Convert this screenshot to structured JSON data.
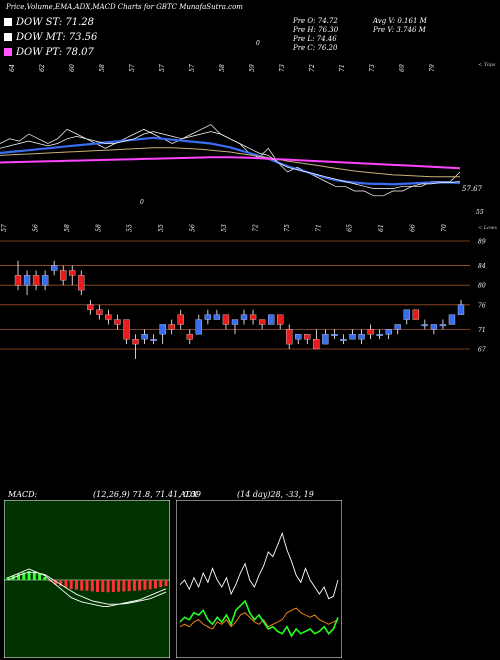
{
  "title": "Price,Volume,EMA,ADX,MACD Charts for GBTC MunafaSutra.com",
  "legend": [
    {
      "label": "DOW ST: 71.28",
      "color": "#ffffff"
    },
    {
      "label": "DOW MT: 73.56",
      "color": "#ffffff"
    },
    {
      "label": "DOW PT: 78.07",
      "color": "#ff55ff"
    }
  ],
  "info": {
    "pre_o": "Pre  O: 74.72",
    "pre_h": "Pre  H: 76.30",
    "pre_l": "Pre  L: 74.46",
    "pre_c": "Pre  C: 76.20",
    "avg_v": "Avg V: 0.161 M",
    "pre_v": "Pre  V: 3.746  M"
  },
  "colors": {
    "up": "#3a6cf0",
    "down": "#e81c1c",
    "ma_pink": "#ff44ff",
    "macd_bg": "#003300",
    "grid": "#a0522d"
  },
  "chart_data": [
    {
      "type": "line",
      "name": "ema-panel",
      "top_labels": [
        "64",
        "62",
        "60",
        "58",
        "57",
        "57",
        "57",
        "58",
        "59",
        "73",
        "72",
        "71",
        "73",
        "69",
        "79"
      ],
      "top_right_label": "< Tops",
      "bottom_labels": [
        "57",
        "56",
        "58",
        "58",
        "55",
        "55",
        "56",
        "53",
        "72",
        "75",
        "71",
        "65",
        "61",
        "66",
        "70"
      ],
      "bottom_right_label": "< Lows",
      "stray_labels": [
        "0",
        "0"
      ],
      "right_labels": [
        "57.67",
        "55"
      ],
      "series": [
        {
          "values": [
            66,
            67,
            66.5,
            68,
            67,
            66,
            67,
            69,
            68,
            67,
            66,
            65,
            66,
            67,
            68,
            69,
            68,
            67,
            66,
            67,
            68,
            69,
            70,
            68,
            67,
            66,
            64,
            63,
            65,
            62,
            60,
            61,
            60,
            59,
            58,
            57,
            57,
            56,
            56,
            55,
            55,
            56,
            56,
            57,
            57,
            58,
            58,
            58,
            60
          ]
        },
        {
          "values": [
            64,
            64.2,
            64.4,
            64.6,
            64.8,
            65,
            65.2,
            65.4,
            65.6,
            65.8,
            66,
            66.2,
            66.4,
            66.6,
            66.8,
            67,
            67.2,
            67,
            66.8,
            66.6,
            66.4,
            66.2,
            66,
            65.6,
            65.2,
            64.6,
            64,
            63.4,
            62.8,
            62,
            61.2,
            60.6,
            60,
            59.4,
            58.8,
            58.3,
            58,
            57.8,
            57.6,
            57.5,
            57.5,
            57.4,
            57.5,
            57.6,
            57.7,
            57.8,
            57.8,
            57.8,
            57.7
          ]
        },
        {
          "values": [
            63.5,
            63.6,
            63.7,
            63.8,
            63.9,
            64,
            64.1,
            64.2,
            64.3,
            64.4,
            64.5,
            64.6,
            64.7,
            64.8,
            64.9,
            65,
            65.1,
            65.1,
            65.1,
            65,
            64.9,
            64.8,
            64.6,
            64.4,
            64.2,
            63.9,
            63.6,
            63.3,
            63,
            62.7,
            62.3,
            62,
            61.7,
            61.4,
            61.1,
            60.8,
            60.5,
            60.2,
            60,
            59.8,
            59.6,
            59.4,
            59.3,
            59.2,
            59.1,
            59,
            59,
            59,
            59
          ]
        },
        {
          "values": [
            62,
            62.05,
            62.1,
            62.15,
            62.2,
            62.25,
            62.3,
            62.35,
            62.4,
            62.45,
            62.5,
            62.55,
            62.6,
            62.65,
            62.7,
            62.75,
            62.8,
            62.85,
            62.9,
            62.95,
            63,
            63.05,
            63.1,
            63.1,
            63.1,
            63.05,
            63,
            62.9,
            62.8,
            62.7,
            62.6,
            62.5,
            62.4,
            62.3,
            62.2,
            62.1,
            62,
            61.9,
            61.8,
            61.7,
            61.6,
            61.5,
            61.4,
            61.3,
            61.2,
            61.1,
            61,
            60.9,
            60.8
          ]
        },
        {
          "values": [
            65,
            65.5,
            66,
            66.5,
            66,
            65.5,
            66,
            67,
            67.5,
            67,
            66.5,
            66,
            66,
            66.5,
            67,
            68,
            68.5,
            68,
            67.5,
            67,
            67.5,
            68,
            68.5,
            68,
            67,
            66,
            65,
            64,
            63.5,
            62,
            61,
            60.5,
            60,
            59.5,
            59,
            58.5,
            58,
            57.5,
            57,
            56.5,
            56.5,
            56.5,
            57,
            57,
            57.5,
            57.5,
            57.8,
            57.8,
            58
          ]
        }
      ]
    },
    {
      "type": "candlestick",
      "name": "price-panel",
      "axis_labels": [
        "89",
        "84",
        "80",
        "76",
        "71",
        "67"
      ],
      "axis_values": [
        89,
        84,
        80,
        76,
        71,
        67
      ],
      "candles": [
        {
          "o": 82,
          "h": 85,
          "l": 79,
          "c": 80
        },
        {
          "o": 80,
          "h": 83,
          "l": 78,
          "c": 82
        },
        {
          "o": 82,
          "h": 83,
          "l": 79,
          "c": 80
        },
        {
          "o": 80,
          "h": 83,
          "l": 79,
          "c": 82
        },
        {
          "o": 83,
          "h": 85,
          "l": 82,
          "c": 84
        },
        {
          "o": 83,
          "h": 84,
          "l": 80,
          "c": 81
        },
        {
          "o": 83,
          "h": 84,
          "l": 80,
          "c": 82
        },
        {
          "o": 82,
          "h": 83,
          "l": 78,
          "c": 79
        },
        {
          "o": 76,
          "h": 77,
          "l": 74,
          "c": 75
        },
        {
          "o": 75,
          "h": 76,
          "l": 73,
          "c": 74
        },
        {
          "o": 74,
          "h": 75,
          "l": 72,
          "c": 73
        },
        {
          "o": 73,
          "h": 74,
          "l": 71,
          "c": 72
        },
        {
          "o": 73,
          "h": 73,
          "l": 68,
          "c": 69
        },
        {
          "o": 69,
          "h": 70,
          "l": 65,
          "c": 68
        },
        {
          "o": 69,
          "h": 71,
          "l": 68,
          "c": 70
        },
        {
          "o": 69,
          "h": 70,
          "l": 68,
          "c": 69
        },
        {
          "o": 70,
          "h": 72,
          "l": 68,
          "c": 72
        },
        {
          "o": 72,
          "h": 73,
          "l": 70,
          "c": 71
        },
        {
          "o": 74,
          "h": 75,
          "l": 71,
          "c": 72
        },
        {
          "o": 70,
          "h": 71,
          "l": 68,
          "c": 69
        },
        {
          "o": 70,
          "h": 74,
          "l": 70,
          "c": 73
        },
        {
          "o": 73,
          "h": 75,
          "l": 72,
          "c": 74
        },
        {
          "o": 73,
          "h": 75,
          "l": 73,
          "c": 74
        },
        {
          "o": 74,
          "h": 74,
          "l": 71,
          "c": 72
        },
        {
          "o": 72,
          "h": 73,
          "l": 70,
          "c": 73
        },
        {
          "o": 73,
          "h": 75,
          "l": 72,
          "c": 74
        },
        {
          "o": 74,
          "h": 75,
          "l": 72,
          "c": 73
        },
        {
          "o": 73,
          "h": 73,
          "l": 71,
          "c": 72
        },
        {
          "o": 72,
          "h": 74,
          "l": 72,
          "c": 74
        },
        {
          "o": 74,
          "h": 74,
          "l": 71,
          "c": 72
        },
        {
          "o": 71,
          "h": 72,
          "l": 67,
          "c": 68
        },
        {
          "o": 69,
          "h": 70,
          "l": 68,
          "c": 70
        },
        {
          "o": 70,
          "h": 70,
          "l": 68,
          "c": 69
        },
        {
          "o": 69,
          "h": 71,
          "l": 67,
          "c": 67
        },
        {
          "o": 68,
          "h": 71,
          "l": 68,
          "c": 70
        },
        {
          "o": 70,
          "h": 71,
          "l": 69,
          "c": 70
        },
        {
          "o": 69,
          "h": 70,
          "l": 68,
          "c": 69
        },
        {
          "o": 69,
          "h": 71,
          "l": 69,
          "c": 70
        },
        {
          "o": 69,
          "h": 71,
          "l": 68,
          "c": 70
        },
        {
          "o": 71,
          "h": 72,
          "l": 69,
          "c": 70
        },
        {
          "o": 70,
          "h": 71,
          "l": 69,
          "c": 70
        },
        {
          "o": 70,
          "h": 71,
          "l": 69,
          "c": 71
        },
        {
          "o": 71,
          "h": 72,
          "l": 70,
          "c": 72
        },
        {
          "o": 73,
          "h": 75,
          "l": 72,
          "c": 75
        },
        {
          "o": 75,
          "h": 75,
          "l": 73,
          "c": 73
        },
        {
          "o": 72,
          "h": 73,
          "l": 71,
          "c": 72
        },
        {
          "o": 71,
          "h": 72,
          "l": 70,
          "c": 72
        },
        {
          "o": 72,
          "h": 73,
          "l": 71,
          "c": 72
        },
        {
          "o": 72,
          "h": 74,
          "l": 72,
          "c": 74
        },
        {
          "o": 74,
          "h": 77,
          "l": 74,
          "c": 76
        }
      ]
    },
    {
      "type": "bar",
      "name": "macd-panel",
      "label": "MACD:",
      "params": "(12,26,9) 71.8, 71.41, 0.39",
      "histogram": [
        1,
        1.5,
        2,
        2.5,
        3,
        2.5,
        2,
        1,
        -0.5,
        -1.5,
        -2,
        -2.5,
        -3,
        -3.2,
        -3.5,
        -3.6,
        -3.8,
        -4,
        -4,
        -4.1,
        -4,
        -3.9,
        -3.8,
        -3.7,
        -3.6,
        -3.5,
        -3.3,
        -3.1,
        -2.8,
        -2.4,
        -2
      ],
      "line_a": [
        1,
        2,
        3,
        4,
        5,
        4,
        3,
        2,
        0,
        -2,
        -4,
        -6,
        -8,
        -9,
        -10,
        -10.5,
        -11,
        -11.5,
        -12,
        -12,
        -11.5,
        -11,
        -10.5,
        -10,
        -9.5,
        -9,
        -8,
        -7,
        -6,
        -5,
        -4
      ],
      "line_b": [
        0,
        1,
        2,
        3,
        3.5,
        3.5,
        3,
        2.5,
        1,
        -0.5,
        -2,
        -3.5,
        -5,
        -6.5,
        -7.5,
        -8.5,
        -9.5,
        -10,
        -10.5,
        -11,
        -11,
        -11,
        -10.8,
        -10.5,
        -10,
        -9.5,
        -9,
        -8.5,
        -7.5,
        -6.5,
        -5.5
      ]
    },
    {
      "type": "line",
      "name": "adx-panel",
      "label": "ADX",
      "params": "(14  day)28, -33,  19",
      "series": [
        {
          "values": [
            28,
            30,
            26,
            31,
            27,
            33,
            29,
            35,
            30,
            27,
            31,
            24,
            28,
            33,
            37,
            30,
            27,
            32,
            36,
            42,
            40,
            45,
            50,
            43,
            38,
            32,
            29,
            35,
            30,
            27,
            24,
            27,
            22,
            23,
            30
          ]
        },
        {
          "values": [
            10,
            11,
            10,
            12,
            13,
            11,
            10,
            9,
            12,
            11,
            13,
            10,
            12,
            15,
            16,
            14,
            12,
            11,
            13,
            10,
            11,
            12,
            13,
            16,
            17,
            18,
            16,
            15,
            14,
            15,
            13,
            12,
            11,
            12,
            13
          ]
        },
        {
          "values": [
            12,
            14,
            13,
            16,
            15,
            17,
            13,
            11,
            14,
            12,
            15,
            11,
            17,
            19,
            21,
            16,
            13,
            15,
            12,
            9,
            10,
            8,
            7,
            10,
            6,
            9,
            7,
            8,
            9,
            7,
            8,
            10,
            7,
            9,
            14
          ]
        }
      ]
    }
  ]
}
